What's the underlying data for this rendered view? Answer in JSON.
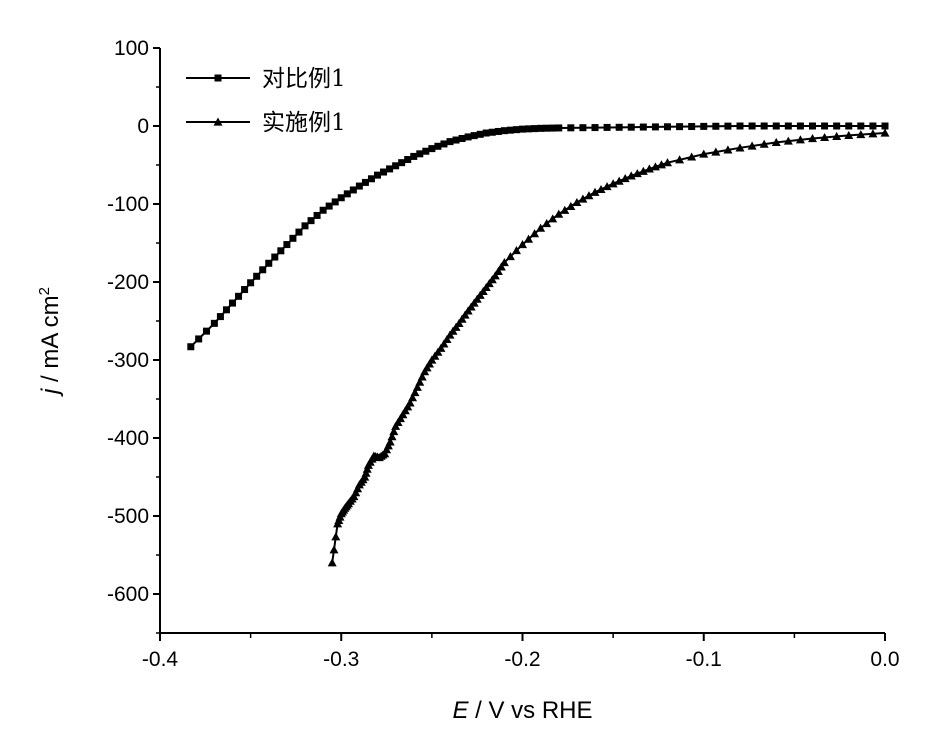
{
  "chart_data": {
    "type": "line",
    "xlabel": {
      "italic": "E",
      "rest": " / V vs RHE"
    },
    "ylabel": {
      "italic": "j",
      "rest": " / mA cm",
      "sup": "2"
    },
    "xlim": [
      -0.4,
      0.0
    ],
    "ylim": [
      -650,
      100
    ],
    "xticks": [
      -0.4,
      -0.3,
      -0.2,
      -0.1,
      0.0
    ],
    "xtick_labels": [
      "-0.4",
      "-0.3",
      "-0.2",
      "-0.1",
      "0.0"
    ],
    "yticks": [
      100,
      0,
      -100,
      -200,
      -300,
      -400,
      -500,
      -600
    ],
    "ytick_labels": [
      "100",
      "0",
      "-100",
      "-200",
      "-300",
      "-400",
      "-500",
      "-600"
    ],
    "legend_position": "top-left",
    "series": [
      {
        "name": "对比例1",
        "marker": "square",
        "x": [
          -0.383,
          -0.37,
          -0.36,
          -0.35,
          -0.34,
          -0.33,
          -0.32,
          -0.31,
          -0.3,
          -0.29,
          -0.28,
          -0.27,
          -0.26,
          -0.25,
          -0.24,
          -0.23,
          -0.22,
          -0.21,
          -0.2,
          -0.19,
          -0.18,
          -0.16,
          -0.14,
          -0.12,
          -0.1,
          -0.08,
          -0.06,
          -0.04,
          -0.02,
          0.0
        ],
        "y": [
          -283,
          -253,
          -227,
          -201,
          -176,
          -152,
          -128,
          -108,
          -92,
          -77,
          -63,
          -51,
          -39,
          -29,
          -20,
          -14,
          -9,
          -6,
          -4,
          -3,
          -2.5,
          -2,
          -1.5,
          -1,
          -0.5,
          0,
          0,
          0,
          0,
          0
        ]
      },
      {
        "name": "实施例1",
        "marker": "triangle",
        "x": [
          -0.305,
          -0.302,
          -0.3,
          -0.298,
          -0.296,
          -0.293,
          -0.29,
          -0.287,
          -0.285,
          -0.282,
          -0.279,
          -0.276,
          -0.273,
          -0.27,
          -0.266,
          -0.262,
          -0.258,
          -0.254,
          -0.25,
          -0.245,
          -0.24,
          -0.235,
          -0.23,
          -0.225,
          -0.22,
          -0.215,
          -0.21,
          -0.2,
          -0.19,
          -0.18,
          -0.17,
          -0.16,
          -0.15,
          -0.14,
          -0.13,
          -0.12,
          -0.1,
          -0.08,
          -0.06,
          -0.04,
          -0.02,
          0.0
        ],
        "y": [
          -560,
          -510,
          -497,
          -490,
          -484,
          -475,
          -460,
          -450,
          -435,
          -423,
          -425,
          -420,
          -405,
          -385,
          -370,
          -355,
          -335,
          -315,
          -300,
          -285,
          -268,
          -253,
          -237,
          -222,
          -207,
          -192,
          -175,
          -152,
          -131,
          -113,
          -98,
          -85,
          -74,
          -64,
          -55,
          -47,
          -36,
          -28,
          -21,
          -16,
          -12,
          -9
        ]
      }
    ]
  }
}
